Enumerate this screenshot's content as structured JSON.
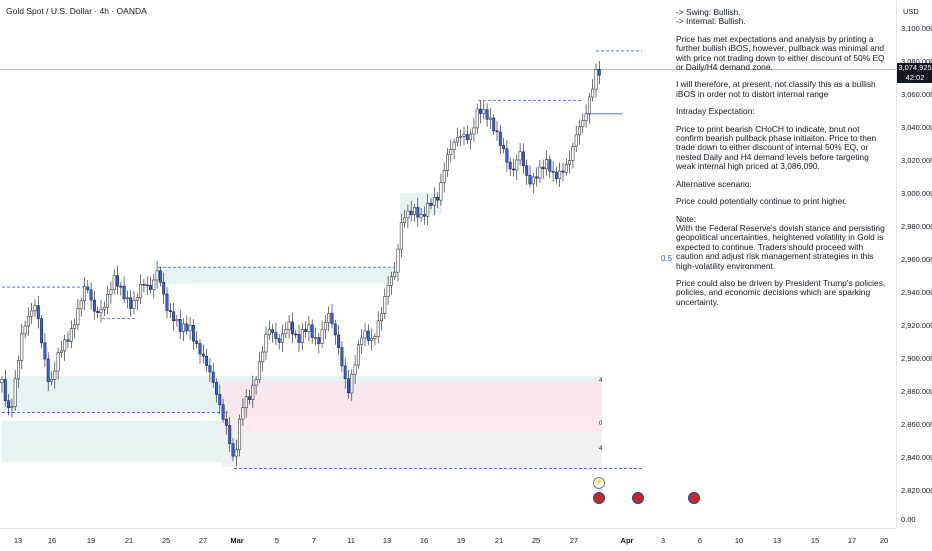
{
  "header": {
    "symbol_title": "Gold Spot / U.S. Dollar · 4h · OANDA"
  },
  "price_axis": {
    "currency": "USD",
    "ticks": [
      "3,100.000",
      "3,080.000",
      "3,060.000",
      "3,040.000",
      "3,020.000",
      "3,000.000",
      "2,980.000",
      "2,960.000",
      "2,940.000",
      "2,920.000",
      "2,900.000",
      "2,880.000",
      "2,860.000",
      "2,840.000",
      "2,820.000",
      "0.00"
    ],
    "current_price": "3,074.925",
    "countdown": "42:02"
  },
  "time_axis": {
    "ticks": [
      "13",
      "16",
      "19",
      "21",
      "25",
      "27",
      "Mar",
      "5",
      "7",
      "11",
      "13",
      "16",
      "19",
      "21",
      "25",
      "27",
      "Apr",
      "3",
      "6",
      "10",
      "13",
      "15",
      "17",
      "20"
    ],
    "bold_ticks": [
      "Mar",
      "Apr"
    ]
  },
  "annotations": {
    "fib_label": "0.5",
    "zone_marks": [
      "4",
      "0",
      "4"
    ],
    "event_icons": [
      "lightning-icon",
      "us-flag-icon",
      "us-flag-icon",
      "us-flag-icon",
      "us-flag-icon"
    ]
  },
  "notes": {
    "swing": "-> Swing:  Bullish.",
    "internal": "-> Internal:  Bullish.",
    "p1": "Price has met expectations and analysis by printing a further bullish iBOS, however, pullback was minimal and with price not trading down to either discount of 50% EQ or Daily/H4 demand zone.",
    "p2": "I will therefore, at present, not classify this as a bullish iBOS in order not to distort internal range",
    "h_intraday": "Intraday Expectation:",
    "p3": "Price to print bearish CHoCH to indicate, bnut not confirm bearish pullback phase initiaiton. Price to then trade down to either discount of internal 50% EQ, or nested Daily and H4 demand levels before targeting weak internal high priced at 3,086.090.",
    "h_alt": "Alternative scenario:",
    "p4": "Price could potentially continue to print higher.",
    "h_note": "Note:",
    "p5": "With the Federal Reserve's dovish stance and persisting geopolitical uncertainties, heightened volatility in Gold is expected to continue. Traders should proceed with caution and adjust risk management strategies in this high-volatility environment.",
    "p6": "Price could also be driven by President Trump's policies, policies, and economic decisions which are sparking uncertainty."
  },
  "colors": {
    "bull_candle": "#ffffff",
    "bear_candle": "#2962ff",
    "wick": "#131722",
    "structure_line": "#2962ff",
    "demand_zone": "#e0f2f1",
    "supply_zone": "#fce4ec",
    "grey_zone": "#eceff1"
  },
  "chart_data": {
    "type": "candlestick",
    "symbol": "XAUUSD",
    "timeframe": "4h",
    "ylim": [
      2815,
      3103
    ],
    "x_labels": [
      "13",
      "16",
      "19",
      "21",
      "25",
      "27",
      "Mar",
      "5",
      "7",
      "11",
      "13",
      "16",
      "19",
      "21",
      "25",
      "27",
      "Apr",
      "3",
      "6",
      "10",
      "13",
      "15",
      "17",
      "20"
    ],
    "path_points": [
      {
        "t": 0,
        "p": 2885
      },
      {
        "t": 8,
        "p": 2868
      },
      {
        "t": 20,
        "p": 2912
      },
      {
        "t": 34,
        "p": 2935
      },
      {
        "t": 48,
        "p": 2880
      },
      {
        "t": 58,
        "p": 2903
      },
      {
        "t": 70,
        "p": 2920
      },
      {
        "t": 84,
        "p": 2942
      },
      {
        "t": 92,
        "p": 2928
      },
      {
        "t": 100,
        "p": 2932
      },
      {
        "t": 112,
        "p": 2946
      },
      {
        "t": 120,
        "p": 2938
      },
      {
        "t": 130,
        "p": 2934
      },
      {
        "t": 140,
        "p": 2945
      },
      {
        "t": 148,
        "p": 2938
      },
      {
        "t": 156,
        "p": 2955
      },
      {
        "t": 166,
        "p": 2930
      },
      {
        "t": 178,
        "p": 2915
      },
      {
        "t": 188,
        "p": 2920
      },
      {
        "t": 198,
        "p": 2905
      },
      {
        "t": 208,
        "p": 2888
      },
      {
        "t": 218,
        "p": 2872
      },
      {
        "t": 226,
        "p": 2858
      },
      {
        "t": 232,
        "p": 2835
      },
      {
        "t": 240,
        "p": 2868
      },
      {
        "t": 248,
        "p": 2878
      },
      {
        "t": 258,
        "p": 2900
      },
      {
        "t": 266,
        "p": 2916
      },
      {
        "t": 276,
        "p": 2908
      },
      {
        "t": 286,
        "p": 2925
      },
      {
        "t": 296,
        "p": 2908
      },
      {
        "t": 306,
        "p": 2918
      },
      {
        "t": 316,
        "p": 2912
      },
      {
        "t": 326,
        "p": 2926
      },
      {
        "t": 336,
        "p": 2906
      },
      {
        "t": 346,
        "p": 2882
      },
      {
        "t": 352,
        "p": 2896
      },
      {
        "t": 360,
        "p": 2912
      },
      {
        "t": 370,
        "p": 2910
      },
      {
        "t": 378,
        "p": 2928
      },
      {
        "t": 386,
        "p": 2944
      },
      {
        "t": 394,
        "p": 2950
      },
      {
        "t": 398,
        "p": 2978
      },
      {
        "t": 404,
        "p": 2990
      },
      {
        "t": 412,
        "p": 2992
      },
      {
        "t": 420,
        "p": 2982
      },
      {
        "t": 428,
        "p": 2992
      },
      {
        "t": 436,
        "p": 3000
      },
      {
        "t": 444,
        "p": 3022
      },
      {
        "t": 452,
        "p": 3028
      },
      {
        "t": 460,
        "p": 3034
      },
      {
        "t": 468,
        "p": 3036
      },
      {
        "t": 476,
        "p": 3052
      },
      {
        "t": 482,
        "p": 3046
      },
      {
        "t": 490,
        "p": 3040
      },
      {
        "t": 496,
        "p": 3036
      },
      {
        "t": 502,
        "p": 3028
      },
      {
        "t": 510,
        "p": 3010
      },
      {
        "t": 518,
        "p": 3022
      },
      {
        "t": 526,
        "p": 3008
      },
      {
        "t": 536,
        "p": 3014
      },
      {
        "t": 544,
        "p": 3016
      },
      {
        "t": 552,
        "p": 3008
      },
      {
        "t": 560,
        "p": 3016
      },
      {
        "t": 568,
        "p": 3022
      },
      {
        "t": 576,
        "p": 3036
      },
      {
        "t": 582,
        "p": 3042
      },
      {
        "t": 588,
        "p": 3060
      },
      {
        "t": 594,
        "p": 3076
      },
      {
        "t": 598,
        "p": 3075
      }
    ],
    "current_price": 3074.925,
    "levels": [
      {
        "price": 3086.09,
        "from_t": 594,
        "to_t": 640,
        "style": "dashed"
      },
      {
        "price": 3056.0,
        "from_t": 476,
        "to_t": 580,
        "style": "dashed"
      },
      {
        "price": 3048.0,
        "from_t": 584,
        "to_t": 620,
        "style": "solid"
      },
      {
        "price": 2955.0,
        "from_t": 156,
        "to_t": 392,
        "style": "dashed"
      },
      {
        "price": 2943.0,
        "from_t": 0,
        "to_t": 84,
        "style": "dashed"
      },
      {
        "price": 2867.0,
        "from_t": 0,
        "to_t": 226,
        "style": "dashed"
      },
      {
        "price": 2833.0,
        "from_t": 232,
        "to_t": 640,
        "style": "dashed"
      },
      {
        "price": 2924.0,
        "from_t": 100,
        "to_t": 134,
        "style": "dashed"
      }
    ],
    "zones": [
      {
        "kind": "demand",
        "from_t": 0,
        "to_t": 600,
        "top": 2889,
        "bottom": 2868
      },
      {
        "kind": "demand",
        "from_t": 0,
        "to_t": 220,
        "top": 2862,
        "bottom": 2837
      },
      {
        "kind": "supply",
        "from_t": 220,
        "to_t": 600,
        "top": 2886,
        "bottom": 2855
      },
      {
        "kind": "grey",
        "from_t": 220,
        "to_t": 600,
        "top": 2855,
        "bottom": 2834
      },
      {
        "kind": "demand",
        "from_t": 156,
        "to_t": 392,
        "top": 2955,
        "bottom": 2945
      },
      {
        "kind": "demand",
        "from_t": 398,
        "to_t": 440,
        "top": 3000,
        "bottom": 2987
      }
    ]
  }
}
